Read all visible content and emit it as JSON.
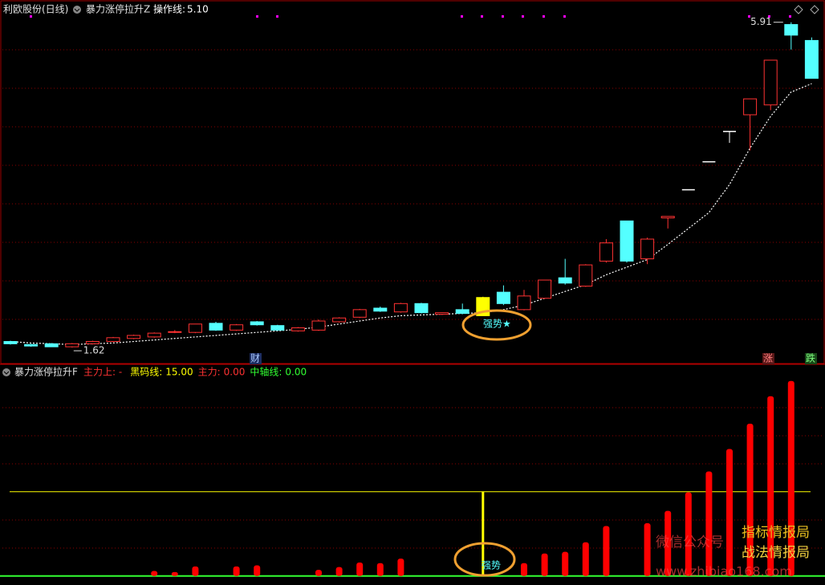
{
  "chart_data": [
    {
      "type": "candlestick",
      "title": "利欧股份(日线)",
      "indicator": "暴力涨停拉升Z",
      "ma": {
        "name": "操作线:",
        "value": 5.1,
        "value_label": "5.10",
        "color": "#ffffff",
        "values": [
          1.7,
          1.68,
          1.67,
          1.66,
          1.67,
          1.68,
          1.7,
          1.72,
          1.74,
          1.76,
          1.78,
          1.8,
          1.82,
          1.84,
          1.86,
          1.89,
          1.93,
          1.97,
          2.01,
          2.04,
          2.05,
          2.06,
          2.07,
          2.08,
          2.12,
          2.18,
          2.27,
          2.36,
          2.45,
          2.58,
          2.68,
          2.78,
          2.98,
          3.19,
          3.4,
          3.77,
          4.25,
          4.67,
          4.99,
          5.1
        ]
      },
      "open": [
        1.7,
        1.66,
        1.67,
        1.63,
        1.67,
        1.7,
        1.74,
        1.76,
        1.82,
        1.82,
        1.94,
        1.85,
        1.96,
        1.91,
        1.84,
        1.85,
        1.96,
        2.02,
        2.14,
        2.09,
        2.2,
        2.06,
        2.12,
        2.04,
        2.35,
        2.12,
        2.27,
        2.54,
        2.43,
        2.76,
        3.29,
        2.79,
        3.33,
        3.7,
        4.07,
        4.47,
        4.69,
        4.82,
        5.88,
        5.67
      ],
      "high": [
        1.71,
        1.67,
        1.68,
        1.68,
        1.71,
        1.76,
        1.79,
        1.82,
        1.85,
        1.93,
        1.96,
        1.93,
        1.97,
        1.92,
        1.89,
        1.99,
        2.02,
        2.13,
        2.16,
        2.21,
        2.21,
        2.08,
        2.2,
        2.29,
        2.44,
        2.38,
        2.51,
        2.79,
        2.72,
        3.05,
        3.29,
        3.07,
        3.35,
        3.7,
        4.07,
        4.47,
        4.9,
        5.41,
        5.91,
        5.71
      ],
      "low": [
        1.66,
        1.63,
        1.63,
        1.62,
        1.66,
        1.69,
        1.73,
        1.75,
        1.81,
        1.81,
        1.84,
        1.84,
        1.91,
        1.84,
        1.83,
        1.84,
        1.95,
        2.01,
        2.09,
        2.08,
        2.07,
        2.05,
        2.06,
        2.04,
        2.18,
        2.11,
        2.26,
        2.45,
        2.42,
        2.74,
        2.74,
        2.72,
        3.19,
        3.7,
        4.07,
        4.32,
        4.22,
        4.75,
        5.55,
        5.17
      ],
      "close": [
        1.67,
        1.64,
        1.63,
        1.67,
        1.7,
        1.75,
        1.78,
        1.81,
        1.83,
        1.93,
        1.85,
        1.92,
        1.92,
        1.85,
        1.88,
        1.97,
        2.01,
        2.12,
        2.1,
        2.2,
        2.08,
        2.08,
        2.07,
        2.28,
        2.2,
        2.3,
        2.51,
        2.47,
        2.71,
        3.0,
        2.76,
        3.05,
        3.35,
        3.7,
        4.07,
        4.47,
        4.9,
        5.41,
        5.74,
        5.17
      ],
      "up_color": "#ff3232",
      "down_color": "#54ffff",
      "highlight_index": 23,
      "highlight_color": "#ffff00",
      "ylim": [
        1.42,
        6.14
      ],
      "max_label": {
        "value": 5.91,
        "label": "5.91"
      },
      "min_label": {
        "value": 1.62,
        "label": "1.62"
      },
      "annotation": "强势★",
      "badges": [
        "财",
        "涨",
        "跌"
      ]
    },
    {
      "type": "bar",
      "title": "暴力涨停拉升F",
      "legend": [
        {
          "name": "主力上: -",
          "color": "#ff3232"
        },
        {
          "name": "黑码线:",
          "value": 15,
          "value_label": "15.00",
          "color": "#ffff00"
        },
        {
          "name": "主力:",
          "value": 0,
          "value_label": "0.00",
          "color": "#ff3232"
        },
        {
          "name": "中轴线:",
          "value": 0,
          "value_label": "0.00",
          "color": "#32ff32"
        }
      ],
      "values": [
        null,
        null,
        null,
        null,
        null,
        null,
        null,
        0.9,
        0.7,
        1.7,
        null,
        1.7,
        1.9,
        null,
        null,
        1.1,
        1.6,
        2.4,
        2.3,
        3.1,
        null,
        null,
        null,
        null,
        null,
        2.3,
        4.0,
        4.3,
        6.0,
        8.9,
        null,
        9.4,
        11.6,
        14.9,
        18.6,
        22.6,
        27.1,
        32.0,
        34.7,
        null
      ],
      "color": "#ff0000",
      "ylim": [
        -1.6,
        37.1
      ],
      "annotation": "强势"
    }
  ],
  "watermark": [
    "微信公众号",
    "指标情报局",
    "战法情报局",
    "www.zhibiao168.com"
  ]
}
